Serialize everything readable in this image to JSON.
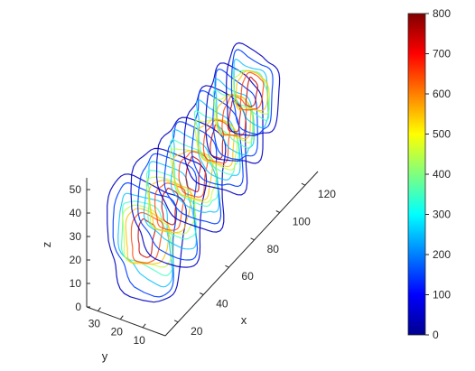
{
  "chart_data": {
    "type": "contour3d-slices",
    "title": "",
    "xlabel": "x",
    "ylabel": "y",
    "zlabel": "z",
    "xlim": [
      10,
      130
    ],
    "ylim": [
      0,
      35
    ],
    "zlim": [
      0,
      55
    ],
    "x_ticks": [
      "20",
      "40",
      "60",
      "80",
      "100",
      "120"
    ],
    "y_ticks": [
      "30",
      "20",
      "10"
    ],
    "z_ticks": [
      "0",
      "10",
      "20",
      "30",
      "40",
      "50"
    ],
    "slice_x_positions": [
      25,
      45,
      65,
      85,
      100,
      115
    ],
    "contour_levels": [
      50,
      150,
      250,
      350,
      450,
      550,
      650,
      750
    ],
    "colorbar": {
      "colormap": "jet",
      "range": [
        0,
        800
      ],
      "ticks": [
        "0",
        "100",
        "200",
        "300",
        "400",
        "500",
        "600",
        "700",
        "800"
      ]
    }
  }
}
